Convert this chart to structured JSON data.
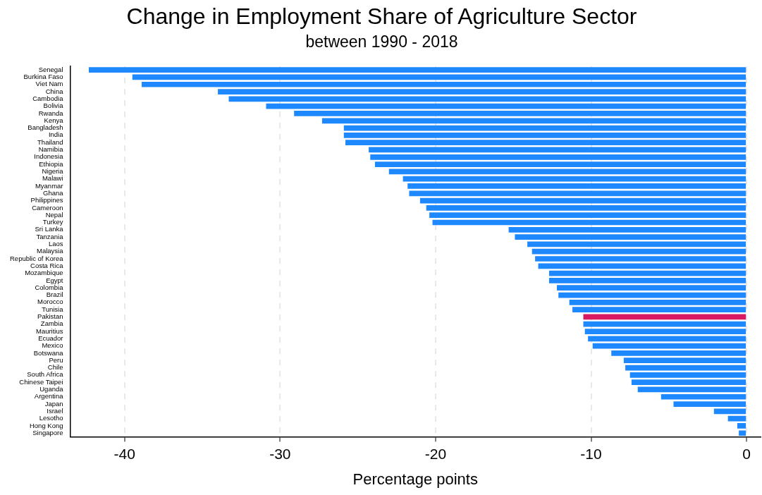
{
  "chart_data": {
    "type": "bar",
    "orientation": "horizontal",
    "title": "Change in Employment Share of Agriculture Sector",
    "subtitle": "between 1990 - 2018",
    "xlabel": "Percentage points",
    "categories": [
      "Senegal",
      "Burkina Faso",
      "Viet Nam",
      "China",
      "Cambodia",
      "Bolivia",
      "Rwanda",
      "Kenya",
      "Bangladesh",
      "India",
      "Thailand",
      "Namibia",
      "Indonesia",
      "Ethiopia",
      "Nigeria",
      "Malawi",
      "Myanmar",
      "Ghana",
      "Philippines",
      "Cameroon",
      "Nepal",
      "Turkey",
      "Sri Lanka",
      "Tanzania",
      "Laos",
      "Malaysia",
      "Republic of Korea",
      "Costa Rica",
      "Mozambique",
      "Egypt",
      "Colombia",
      "Brazil",
      "Morocco",
      "Tunisia",
      "Pakistan",
      "Zambia",
      "Mauritius",
      "Ecuador",
      "Mexico",
      "Botswana",
      "Peru",
      "Chile",
      "South Africa",
      "Chinese Taipei",
      "Uganda",
      "Argentina",
      "Japan",
      "Israel",
      "Lesotho",
      "Hong Kong",
      "Singapore"
    ],
    "values": [
      -42.3,
      -39.5,
      -38.9,
      -34.0,
      -33.3,
      -30.9,
      -29.1,
      -27.3,
      -25.9,
      -25.9,
      -25.8,
      -24.3,
      -24.2,
      -23.9,
      -23.0,
      -22.1,
      -21.8,
      -21.7,
      -21.0,
      -20.6,
      -20.4,
      -20.2,
      -15.3,
      -14.9,
      -14.1,
      -13.8,
      -13.6,
      -13.4,
      -12.7,
      -12.7,
      -12.2,
      -12.1,
      -11.4,
      -11.2,
      -10.5,
      -10.5,
      -10.4,
      -10.2,
      -9.9,
      -8.7,
      -7.9,
      -7.8,
      -7.5,
      -7.4,
      -7.0,
      -5.5,
      -4.7,
      -2.1,
      -1.2,
      -0.6,
      -0.5
    ],
    "colors": [
      "#1e88ff",
      "#1e88ff",
      "#1e88ff",
      "#1e88ff",
      "#1e88ff",
      "#1e88ff",
      "#1e88ff",
      "#1e88ff",
      "#1e88ff",
      "#1e88ff",
      "#1e88ff",
      "#1e88ff",
      "#1e88ff",
      "#1e88ff",
      "#1e88ff",
      "#1e88ff",
      "#1e88ff",
      "#1e88ff",
      "#1e88ff",
      "#1e88ff",
      "#1e88ff",
      "#1e88ff",
      "#1e88ff",
      "#1e88ff",
      "#1e88ff",
      "#1e88ff",
      "#1e88ff",
      "#1e88ff",
      "#1e88ff",
      "#1e88ff",
      "#1e88ff",
      "#1e88ff",
      "#1e88ff",
      "#1e88ff",
      "#d81b60",
      "#1e88ff",
      "#1e88ff",
      "#1e88ff",
      "#1e88ff",
      "#1e88ff",
      "#1e88ff",
      "#1e88ff",
      "#1e88ff",
      "#1e88ff",
      "#1e88ff",
      "#1e88ff",
      "#1e88ff",
      "#1e88ff",
      "#1e88ff",
      "#1e88ff",
      "#1e88ff"
    ],
    "xlim": [
      -43.5,
      0.9
    ],
    "xticks": [
      -40,
      -30,
      -20,
      -10,
      0
    ],
    "grid": "x",
    "legend": false
  }
}
